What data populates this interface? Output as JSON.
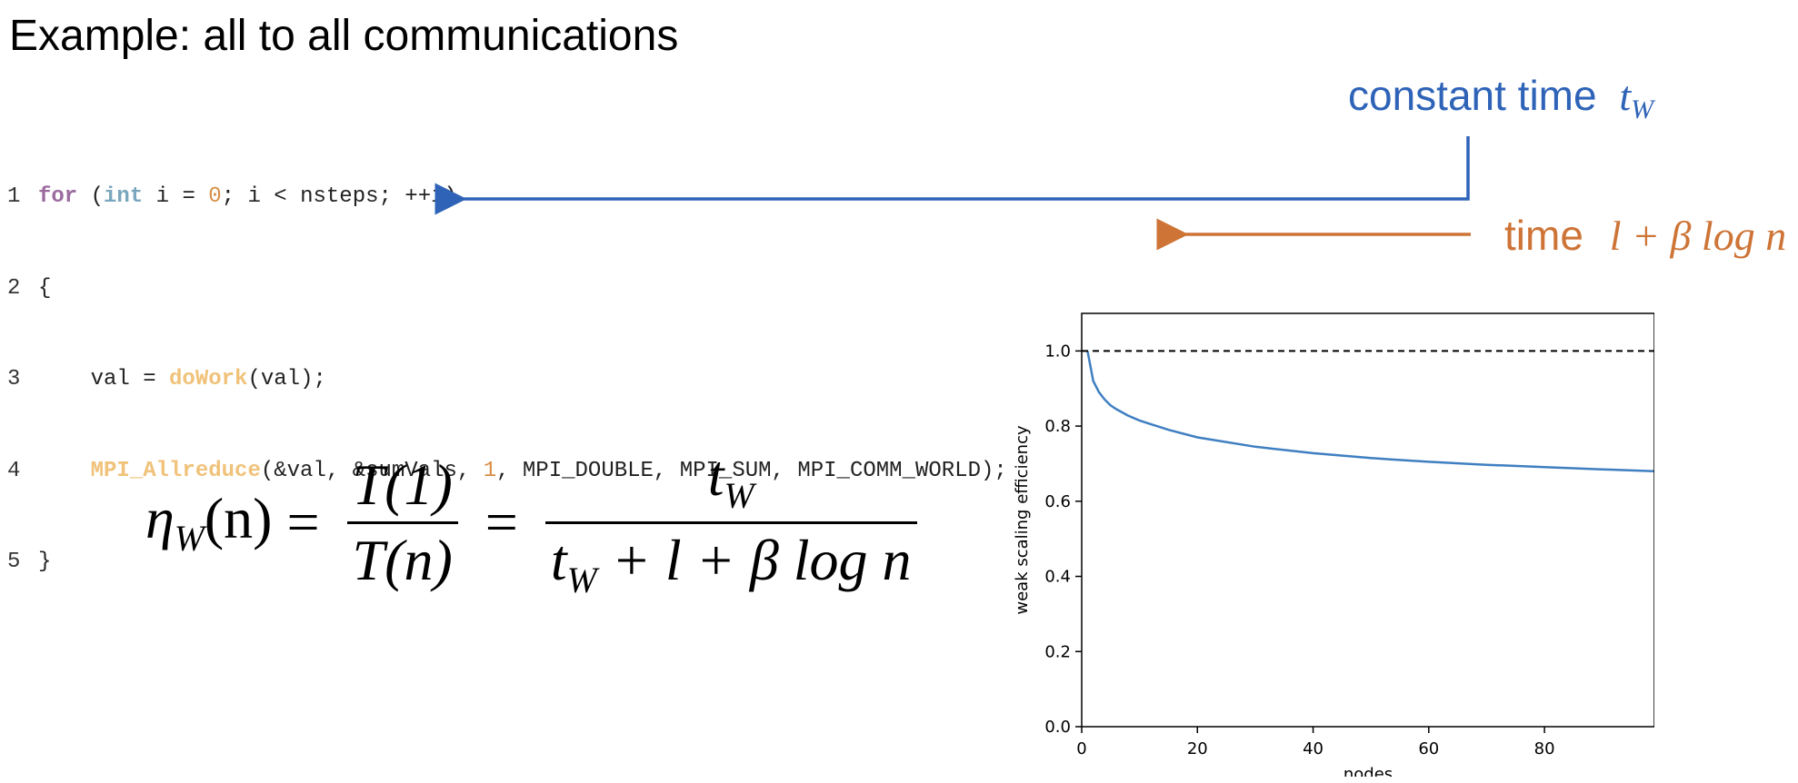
{
  "title": {
    "bold": "Example",
    "rest": ": all to all communications"
  },
  "code": {
    "line1": {
      "n": "1",
      "kw": "for",
      "p1": " (",
      "ty": "int",
      "p2": " i = ",
      "num": "0",
      "p3": "; i < nsteps; ++i)"
    },
    "line2": {
      "n": "2",
      "text": "{"
    },
    "line3": {
      "n": "3",
      "p1": "    val = ",
      "fn": "doWork",
      "p2": "(val);"
    },
    "line4": {
      "n": "4",
      "p0": "    ",
      "fn": "MPI_Allreduce",
      "p1": "(&val, &sumVals, ",
      "num": "1",
      "p2": ", MPI_DOUBLE, MPI_SUM, MPI_COMM_WORLD);"
    },
    "line5": {
      "n": "5",
      "text": "}"
    }
  },
  "annotations": {
    "constant": {
      "text": "constant time",
      "symbol": "t",
      "sub": "W",
      "color": "#2e63b8"
    },
    "log": {
      "text": "time",
      "expr": "l + β log n",
      "color": "#cd7436"
    }
  },
  "formula": {
    "lhs": "η",
    "lhs_sub": "W",
    "lhs_arg": "(n)",
    "eq": "=",
    "frac1_num": "T(1)",
    "frac1_den": "T(n)",
    "frac2_num": "t",
    "frac2_num_sub": "W",
    "frac2_den_t": "t",
    "frac2_den_sub": "W",
    "frac2_den_rest": " + l + β log n"
  },
  "chart_data": {
    "type": "line",
    "xlabel": "nodes",
    "ylabel": "weak scaling efficiency",
    "xlim": [
      0,
      99
    ],
    "ylim": [
      0,
      1.1
    ],
    "xticks": [
      0,
      20,
      40,
      60,
      80
    ],
    "yticks": [
      0.0,
      0.2,
      0.4,
      0.6,
      0.8,
      1.0
    ],
    "reference_line": {
      "y": 1.0,
      "style": "dashed",
      "color": "#000000"
    },
    "series": [
      {
        "color": "#3f7fc1",
        "x": [
          1,
          2,
          3,
          4,
          5,
          6,
          8,
          10,
          15,
          20,
          30,
          40,
          50,
          60,
          70,
          80,
          90,
          99
        ],
        "values": [
          1.0,
          0.92,
          0.89,
          0.87,
          0.855,
          0.845,
          0.828,
          0.815,
          0.79,
          0.77,
          0.745,
          0.728,
          0.715,
          0.705,
          0.697,
          0.691,
          0.685,
          0.68
        ]
      }
    ]
  }
}
